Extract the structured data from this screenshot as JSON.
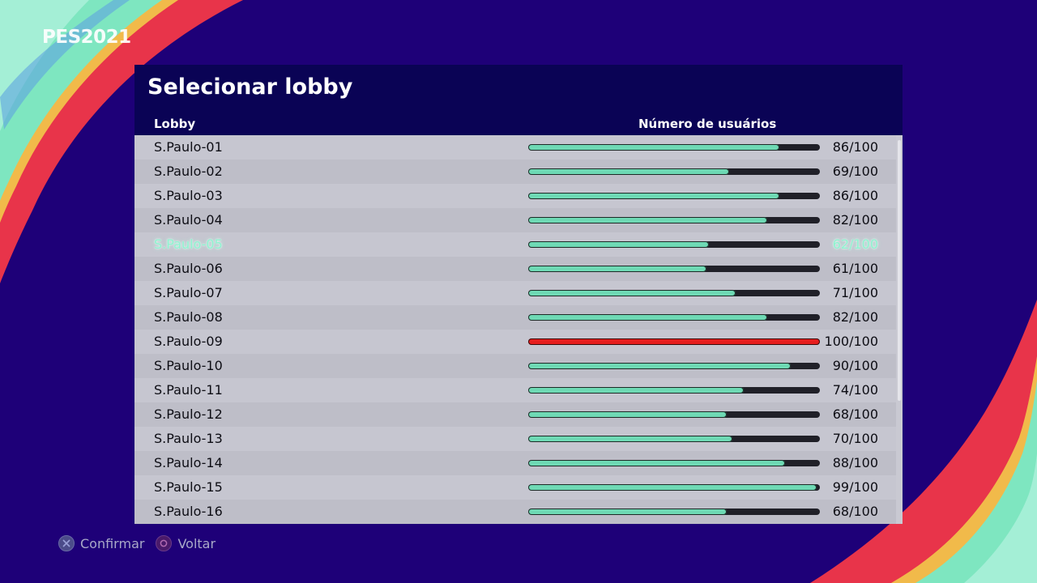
{
  "brand": {
    "logo_text": "PES2021"
  },
  "panel": {
    "title": "Selecionar lobby",
    "columns": {
      "lobby": "Lobby",
      "users": "Número de usuários"
    }
  },
  "lobbies": [
    {
      "name": "S.Paulo-01",
      "users": "86/100",
      "fill": 0.86
    },
    {
      "name": "S.Paulo-02",
      "users": "69/100",
      "fill": 0.69
    },
    {
      "name": "S.Paulo-03",
      "users": "86/100",
      "fill": 0.86
    },
    {
      "name": "S.Paulo-04",
      "users": "82/100",
      "fill": 0.82
    },
    {
      "name": "S.Paulo-05",
      "users": "62/100",
      "fill": 0.62,
      "selected": true
    },
    {
      "name": "S.Paulo-06",
      "users": "61/100",
      "fill": 0.61
    },
    {
      "name": "S.Paulo-07",
      "users": "71/100",
      "fill": 0.71
    },
    {
      "name": "S.Paulo-08",
      "users": "82/100",
      "fill": 0.82
    },
    {
      "name": "S.Paulo-09",
      "users": "100/100",
      "fill": 1.0,
      "full": true
    },
    {
      "name": "S.Paulo-10",
      "users": "90/100",
      "fill": 0.9
    },
    {
      "name": "S.Paulo-11",
      "users": "74/100",
      "fill": 0.74
    },
    {
      "name": "S.Paulo-12",
      "users": "68/100",
      "fill": 0.68
    },
    {
      "name": "S.Paulo-13",
      "users": "70/100",
      "fill": 0.7
    },
    {
      "name": "S.Paulo-14",
      "users": "88/100",
      "fill": 0.88
    },
    {
      "name": "S.Paulo-15",
      "users": "99/100",
      "fill": 0.99
    },
    {
      "name": "S.Paulo-16",
      "users": "68/100",
      "fill": 0.68
    }
  ],
  "footer": {
    "confirm_label": "Confirmar",
    "confirm_icon": "cross-button-icon",
    "back_label": "Voltar",
    "back_icon": "circle-button-icon"
  },
  "colors": {
    "background": "#1e0078",
    "bar_fill": "#6ed9b4",
    "bar_full": "#e61e1e",
    "selected_text": "#8ff3cf"
  }
}
